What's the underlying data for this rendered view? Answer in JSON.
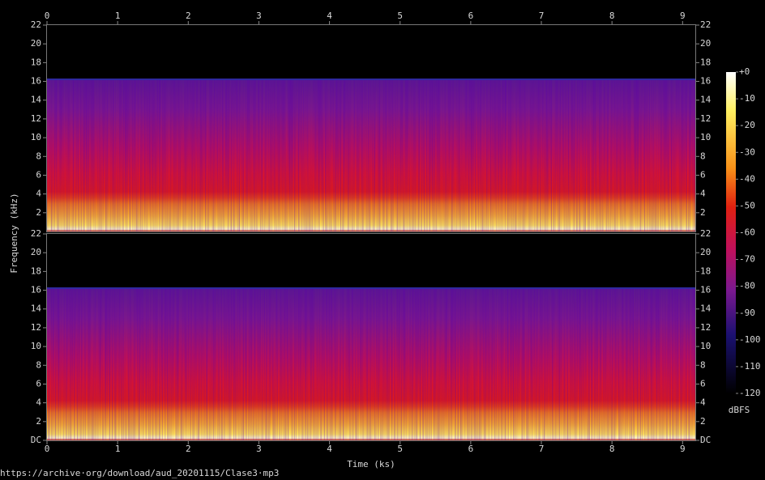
{
  "chart_data": {
    "type": "spectrogram",
    "xlabel": "Time (ks)",
    "ylabel": "Frequency (kHz)",
    "xlim": [
      0,
      9.18
    ],
    "xticks": [
      0,
      1,
      2,
      3,
      4,
      5,
      6,
      7,
      8,
      9
    ],
    "channels": [
      {
        "ylim": [
          0,
          22
        ],
        "yticks": [
          2,
          4,
          6,
          8,
          10,
          12,
          14,
          16,
          18,
          20,
          22
        ]
      },
      {
        "ylim": [
          0,
          22
        ],
        "yticks": [
          {
            "value": 0,
            "label": "DC"
          },
          2,
          4,
          6,
          8,
          10,
          12,
          14,
          16,
          18,
          20,
          22
        ]
      }
    ],
    "colorbar": {
      "label": "dBFS",
      "lim": [
        -120,
        0
      ],
      "ticks": [
        {
          "value": 0,
          "label": "+0"
        },
        -10,
        -20,
        -30,
        -40,
        -50,
        -60,
        -70,
        -80,
        -90,
        -100,
        -110,
        -120
      ]
    }
  },
  "footer": "https://archive·org/download/aud_20201115/Clase3·mp3"
}
